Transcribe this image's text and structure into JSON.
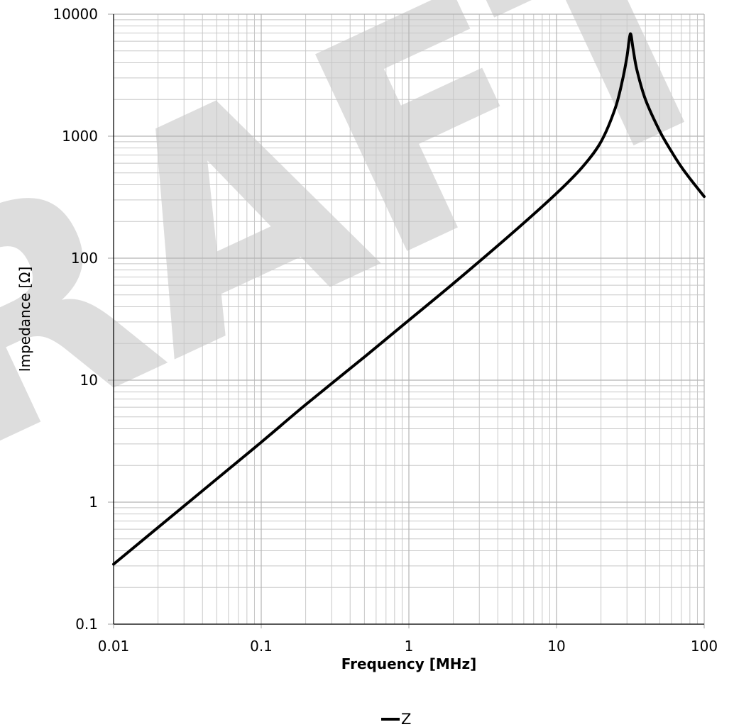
{
  "chart_data": {
    "type": "line",
    "xlabel": "Frequency [MHz]",
    "ylabel": "Impedance [Ω]",
    "x_scale": "log",
    "y_scale": "log",
    "xlim": [
      0.01,
      100
    ],
    "ylim": [
      0.1,
      10000
    ],
    "x_ticks": [
      "0.01",
      "0.1",
      "1",
      "10",
      "100"
    ],
    "y_ticks": [
      "0.1",
      "1",
      "10",
      "100",
      "1000",
      "10000"
    ],
    "grid": true,
    "legend_position": "bottom-center",
    "watermark": "DRAFT",
    "series": [
      {
        "name": "Z",
        "color": "#000000",
        "x": [
          0.01,
          0.02,
          0.05,
          0.1,
          0.2,
          0.5,
          1,
          2,
          5,
          10,
          15,
          20,
          25,
          28,
          30,
          31.6,
          33,
          35,
          40,
          50,
          60,
          70,
          80,
          100
        ],
        "y": [
          0.31,
          0.62,
          1.55,
          3.1,
          6.3,
          15.5,
          31,
          62,
          160,
          340,
          560,
          900,
          1700,
          2900,
          4500,
          6900,
          5200,
          3500,
          2000,
          1100,
          750,
          560,
          450,
          320
        ]
      }
    ]
  }
}
